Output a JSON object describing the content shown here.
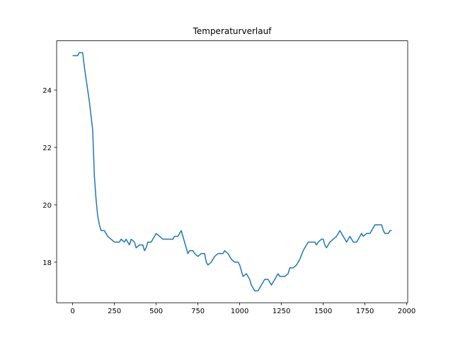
{
  "chart_data": {
    "type": "line",
    "title": "Temperaturverlauf",
    "x": [
      0,
      30,
      40,
      60,
      70,
      80,
      90,
      100,
      110,
      120,
      130,
      140,
      150,
      160,
      170,
      190,
      200,
      210,
      230,
      250,
      280,
      290,
      310,
      320,
      340,
      350,
      370,
      380,
      400,
      420,
      430,
      440,
      450,
      470,
      490,
      500,
      520,
      540,
      600,
      610,
      630,
      650,
      660,
      670,
      680,
      690,
      700,
      720,
      730,
      750,
      770,
      790,
      800,
      810,
      830,
      850,
      870,
      890,
      900,
      910,
      930,
      950,
      970,
      990,
      1000,
      1010,
      1020,
      1040,
      1060,
      1070,
      1080,
      1090,
      1110,
      1130,
      1150,
      1170,
      1180,
      1190,
      1200,
      1210,
      1230,
      1240,
      1270,
      1290,
      1300,
      1320,
      1340,
      1360,
      1380,
      1400,
      1410,
      1450,
      1460,
      1470,
      1490,
      1500,
      1510,
      1520,
      1540,
      1560,
      1580,
      1600,
      1610,
      1620,
      1640,
      1660,
      1680,
      1700,
      1720,
      1730,
      1740,
      1760,
      1780,
      1800,
      1810,
      1850,
      1860,
      1870,
      1890,
      1900,
      1910
    ],
    "series": [
      {
        "color": "#1f77b4",
        "values": [
          25.2,
          25.2,
          25.3,
          25.3,
          24.8,
          24.4,
          24.0,
          23.6,
          23.1,
          22.6,
          21.0,
          20.2,
          19.6,
          19.3,
          19.1,
          19.1,
          19.0,
          18.9,
          18.8,
          18.7,
          18.7,
          18.8,
          18.7,
          18.8,
          18.6,
          18.8,
          18.7,
          18.5,
          18.6,
          18.6,
          18.4,
          18.5,
          18.7,
          18.7,
          18.9,
          19.0,
          18.9,
          18.8,
          18.8,
          18.9,
          18.9,
          19.1,
          18.9,
          18.7,
          18.5,
          18.3,
          18.4,
          18.4,
          18.3,
          18.2,
          18.3,
          18.3,
          18.0,
          17.9,
          18.0,
          18.2,
          18.3,
          18.3,
          18.3,
          18.4,
          18.3,
          18.1,
          18.0,
          18.0,
          17.9,
          17.7,
          17.5,
          17.6,
          17.4,
          17.2,
          17.1,
          17.0,
          17.0,
          17.2,
          17.4,
          17.4,
          17.3,
          17.2,
          17.3,
          17.4,
          17.6,
          17.5,
          17.5,
          17.6,
          17.8,
          17.8,
          17.9,
          18.1,
          18.4,
          18.6,
          18.7,
          18.7,
          18.6,
          18.7,
          18.8,
          18.8,
          18.6,
          18.5,
          18.7,
          18.8,
          18.9,
          19.1,
          19.0,
          18.9,
          18.7,
          18.9,
          18.7,
          18.7,
          18.9,
          19.0,
          18.9,
          19.0,
          19.0,
          19.2,
          19.3,
          19.3,
          19.1,
          19.0,
          19.0,
          19.1,
          19.1
        ]
      }
    ],
    "xlim": [
      -96,
      2006
    ],
    "ylim": [
      16.585,
      25.715
    ],
    "xticks": [
      0,
      250,
      500,
      750,
      1000,
      1250,
      1500,
      1750,
      2000
    ],
    "yticks": [
      18,
      20,
      22,
      24
    ]
  }
}
